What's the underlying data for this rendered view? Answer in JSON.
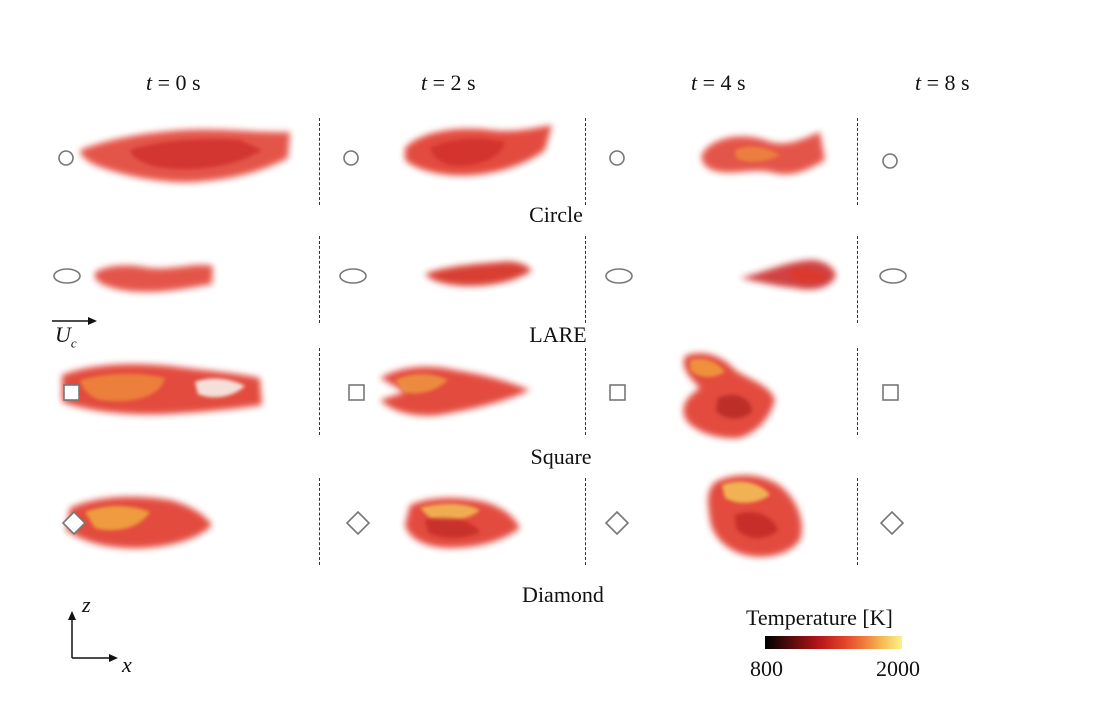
{
  "time_labels": [
    "t = 0 s",
    "t = 2 s",
    "t = 4 s",
    "t = 8 s"
  ],
  "times": [
    {
      "var": "t",
      "rest": " = 0 s"
    },
    {
      "var": "t",
      "rest": " = 2 s"
    },
    {
      "var": "t",
      "rest": " = 4 s"
    },
    {
      "var": "t",
      "rest": " = 8 s"
    }
  ],
  "rows": [
    {
      "label": "Circle",
      "shape": "circle"
    },
    {
      "label": "LARE",
      "shape": "ellipse"
    },
    {
      "label": "Square",
      "shape": "square"
    },
    {
      "label": "Diamond",
      "shape": "diamond"
    }
  ],
  "flow_label": {
    "symbol": "U",
    "subscript": "c"
  },
  "axes": {
    "vertical": "z",
    "horizontal": "x"
  },
  "colorbar": {
    "title": "Temperature [K]",
    "min_label": "800",
    "max_label": "2000",
    "colors": [
      "#000000",
      "#b8161a",
      "#e2442a",
      "#f6bd55",
      "#fbf28a"
    ]
  }
}
